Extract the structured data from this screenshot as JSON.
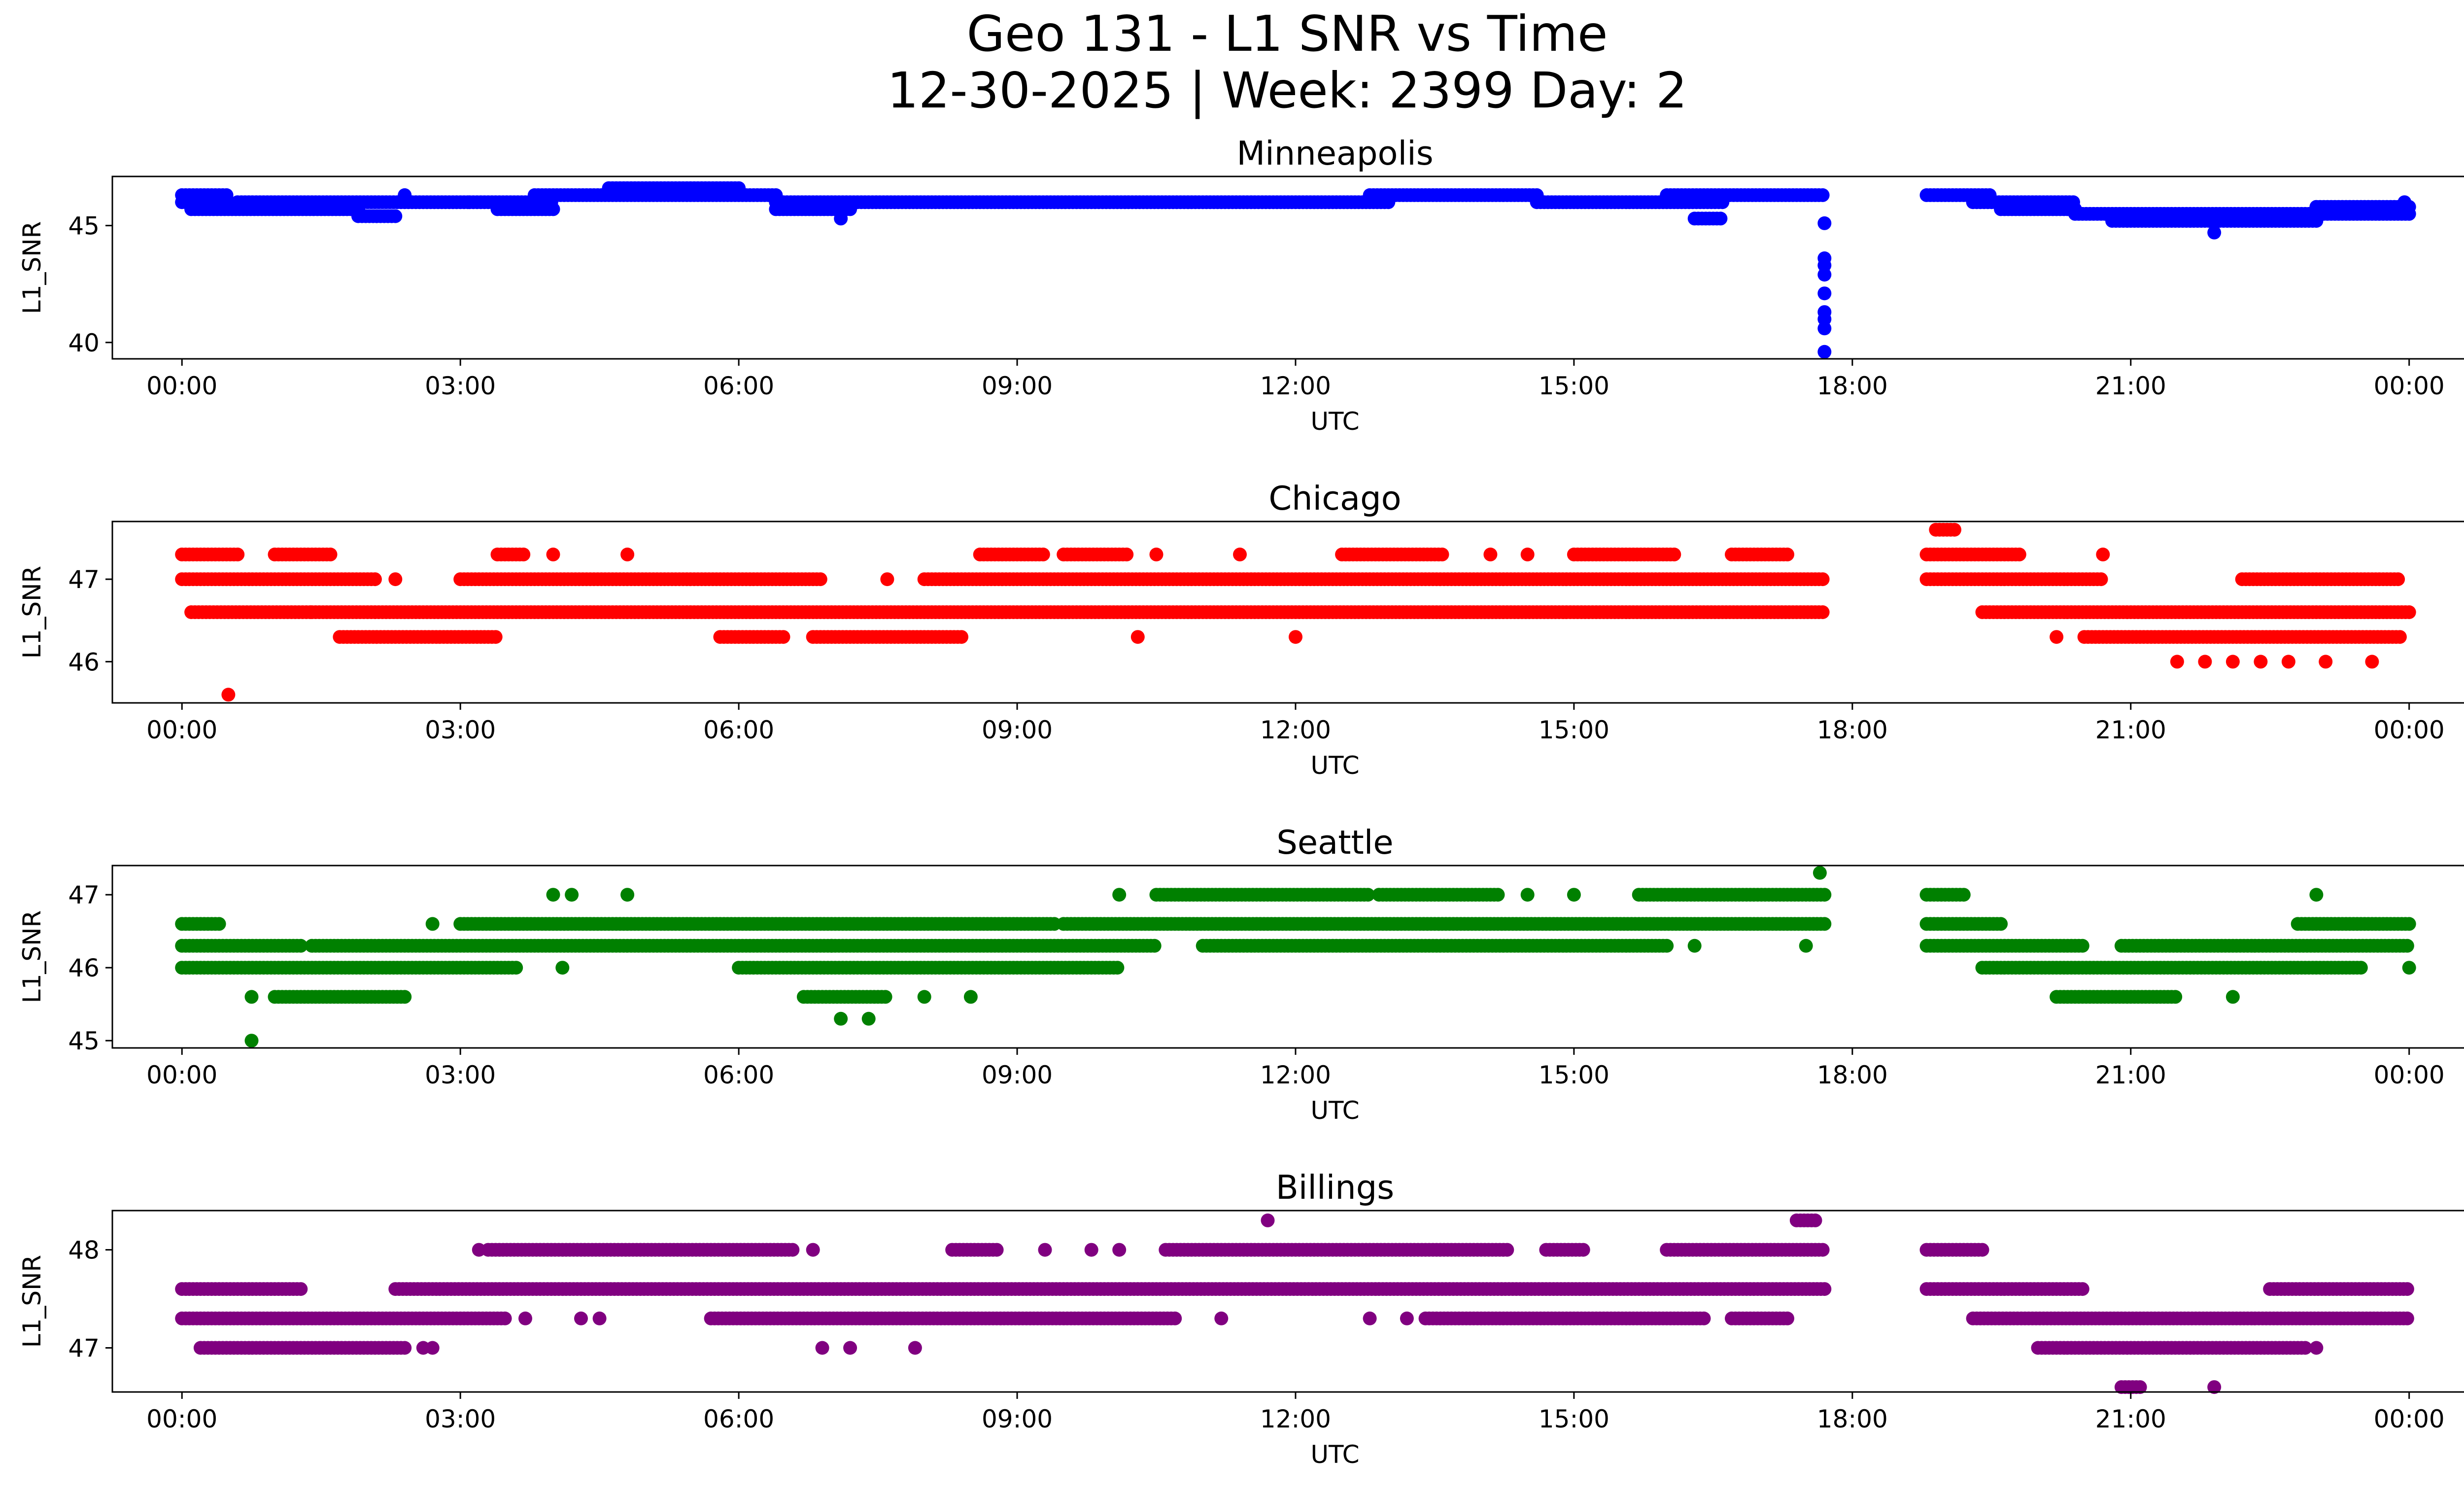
{
  "figure": {
    "title_line1": "Geo 131 - L1 SNR vs Time",
    "title_line2": "12-30-2025 | Week: 2399 Day: 2"
  },
  "chart_data": [
    {
      "type": "scatter",
      "title": "Minneapolis",
      "xlabel": "UTC",
      "ylabel": "L1_SNR",
      "color": "#0000ff",
      "x_unit": "hours since 00:00 UTC",
      "xlim": [
        -0.75,
        25.6
      ],
      "ylim": [
        39.3,
        47.1
      ],
      "x_ticks": [
        0,
        3,
        6,
        9,
        12,
        15,
        18,
        21,
        24
      ],
      "x_tick_labels": [
        "00:00",
        "03:00",
        "06:00",
        "09:00",
        "12:00",
        "15:00",
        "18:00",
        "21:00",
        "00:00"
      ],
      "y_ticks": [
        40,
        45
      ],
      "y_tick_labels": [
        "40",
        "45"
      ],
      "runs": [
        {
          "x0": 0.0,
          "x1": 0.5,
          "y": 46.3
        },
        {
          "x0": 0.0,
          "x1": 0.5,
          "y": 46.0
        },
        {
          "x0": 0.1,
          "x1": 1.9,
          "y": 45.7
        },
        {
          "x0": 0.6,
          "x1": 3.1,
          "y": 46.0
        },
        {
          "x0": 1.9,
          "x1": 2.3,
          "y": 45.4
        },
        {
          "x0": 3.1,
          "x1": 4.0,
          "y": 46.0
        },
        {
          "x0": 3.4,
          "x1": 4.0,
          "y": 45.7
        },
        {
          "x0": 3.8,
          "x1": 6.4,
          "y": 46.3
        },
        {
          "x0": 4.6,
          "x1": 6.0,
          "y": 46.6
        },
        {
          "x0": 6.4,
          "x1": 13.0,
          "y": 46.0
        },
        {
          "x0": 6.4,
          "x1": 7.2,
          "y": 45.7
        },
        {
          "x0": 12.8,
          "x1": 14.6,
          "y": 46.3
        },
        {
          "x0": 14.6,
          "x1": 16.6,
          "y": 46.0
        },
        {
          "x0": 16.0,
          "x1": 17.7,
          "y": 46.3
        },
        {
          "x0": 16.3,
          "x1": 16.6,
          "y": 45.3
        },
        {
          "x0": 18.8,
          "x1": 19.5,
          "y": 46.3
        },
        {
          "x0": 19.3,
          "x1": 20.4,
          "y": 46.0
        },
        {
          "x0": 19.6,
          "x1": 20.4,
          "y": 45.7
        },
        {
          "x0": 20.4,
          "x1": 24.0,
          "y": 45.5
        },
        {
          "x0": 20.8,
          "x1": 23.0,
          "y": 45.2
        },
        {
          "x0": 23.0,
          "x1": 24.0,
          "y": 45.8
        }
      ],
      "points": [
        {
          "x": 2.4,
          "y": 46.3
        },
        {
          "x": 7.1,
          "y": 45.3
        },
        {
          "x": 17.7,
          "y": 45.1
        },
        {
          "x": 17.7,
          "y": 43.6
        },
        {
          "x": 17.7,
          "y": 43.3
        },
        {
          "x": 17.7,
          "y": 42.9
        },
        {
          "x": 17.7,
          "y": 42.1
        },
        {
          "x": 17.7,
          "y": 41.3
        },
        {
          "x": 17.7,
          "y": 41.0
        },
        {
          "x": 17.7,
          "y": 40.6
        },
        {
          "x": 17.7,
          "y": 39.6
        },
        {
          "x": 21.9,
          "y": 44.7
        },
        {
          "x": 23.95,
          "y": 46.0
        }
      ]
    },
    {
      "type": "scatter",
      "title": "Chicago",
      "xlabel": "UTC",
      "ylabel": "L1_SNR",
      "color": "#ff0000",
      "x_unit": "hours since 00:00 UTC",
      "xlim": [
        -0.75,
        25.6
      ],
      "ylim": [
        45.5,
        47.7
      ],
      "x_ticks": [
        0,
        3,
        6,
        9,
        12,
        15,
        18,
        21,
        24
      ],
      "x_tick_labels": [
        "00:00",
        "03:00",
        "06:00",
        "09:00",
        "12:00",
        "15:00",
        "18:00",
        "21:00",
        "00:00"
      ],
      "y_ticks": [
        46,
        47
      ],
      "y_tick_labels": [
        "46",
        "47"
      ],
      "runs": [
        {
          "x0": 0.0,
          "x1": 0.6,
          "y": 47.3
        },
        {
          "x0": 0.0,
          "x1": 2.1,
          "y": 47.0
        },
        {
          "x0": 0.1,
          "x1": 1.4,
          "y": 46.6
        },
        {
          "x0": 1.0,
          "x1": 1.6,
          "y": 47.3
        },
        {
          "x0": 1.4,
          "x1": 17.7,
          "y": 46.6
        },
        {
          "x0": 1.7,
          "x1": 3.4,
          "y": 46.3
        },
        {
          "x0": 3.0,
          "x1": 6.9,
          "y": 47.0
        },
        {
          "x0": 3.4,
          "x1": 3.7,
          "y": 47.3
        },
        {
          "x0": 5.8,
          "x1": 6.5,
          "y": 46.3
        },
        {
          "x0": 6.8,
          "x1": 8.4,
          "y": 46.3
        },
        {
          "x0": 8.0,
          "x1": 17.7,
          "y": 47.0
        },
        {
          "x0": 8.6,
          "x1": 9.3,
          "y": 47.3
        },
        {
          "x0": 9.5,
          "x1": 10.2,
          "y": 47.3
        },
        {
          "x0": 12.5,
          "x1": 13.6,
          "y": 47.3
        },
        {
          "x0": 15.0,
          "x1": 16.1,
          "y": 47.3
        },
        {
          "x0": 16.7,
          "x1": 17.3,
          "y": 47.3
        },
        {
          "x0": 18.8,
          "x1": 19.8,
          "y": 47.3
        },
        {
          "x0": 18.8,
          "x1": 20.7,
          "y": 47.0
        },
        {
          "x0": 19.4,
          "x1": 24.0,
          "y": 46.6
        },
        {
          "x0": 20.5,
          "x1": 23.9,
          "y": 46.3
        },
        {
          "x0": 22.2,
          "x1": 23.9,
          "y": 47.0
        },
        {
          "x0": 18.9,
          "x1": 19.1,
          "y": 47.6
        }
      ],
      "points": [
        {
          "x": 0.5,
          "y": 45.6
        },
        {
          "x": 2.3,
          "y": 47.0
        },
        {
          "x": 4.0,
          "y": 47.3
        },
        {
          "x": 4.8,
          "y": 47.3
        },
        {
          "x": 7.6,
          "y": 47.0
        },
        {
          "x": 10.5,
          "y": 47.3
        },
        {
          "x": 11.4,
          "y": 47.3
        },
        {
          "x": 10.3,
          "y": 46.3
        },
        {
          "x": 12.0,
          "y": 46.3
        },
        {
          "x": 14.1,
          "y": 47.3
        },
        {
          "x": 14.5,
          "y": 47.3
        },
        {
          "x": 20.2,
          "y": 46.3
        },
        {
          "x": 20.7,
          "y": 47.3
        },
        {
          "x": 21.5,
          "y": 46.0
        },
        {
          "x": 21.8,
          "y": 46.0
        },
        {
          "x": 22.1,
          "y": 46.0
        },
        {
          "x": 22.4,
          "y": 46.0
        },
        {
          "x": 22.7,
          "y": 46.0
        },
        {
          "x": 23.1,
          "y": 46.0
        },
        {
          "x": 23.6,
          "y": 46.0
        }
      ]
    },
    {
      "type": "scatter",
      "title": "Seattle",
      "xlabel": "UTC",
      "ylabel": "L1_SNR",
      "color": "#008000",
      "x_unit": "hours since 00:00 UTC",
      "xlim": [
        -0.75,
        25.6
      ],
      "ylim": [
        44.9,
        47.4
      ],
      "x_ticks": [
        0,
        3,
        6,
        9,
        12,
        15,
        18,
        21,
        24
      ],
      "x_tick_labels": [
        "00:00",
        "03:00",
        "06:00",
        "09:00",
        "12:00",
        "15:00",
        "18:00",
        "21:00",
        "00:00"
      ],
      "y_ticks": [
        45,
        46,
        47
      ],
      "y_tick_labels": [
        "45",
        "46",
        "47"
      ],
      "runs": [
        {
          "x0": 0.0,
          "x1": 0.4,
          "y": 46.6
        },
        {
          "x0": 0.0,
          "x1": 1.3,
          "y": 46.3
        },
        {
          "x0": 0.0,
          "x1": 3.6,
          "y": 46.0
        },
        {
          "x0": 1.0,
          "x1": 2.4,
          "y": 45.6
        },
        {
          "x0": 1.4,
          "x1": 7.0,
          "y": 46.3
        },
        {
          "x0": 3.0,
          "x1": 9.4,
          "y": 46.6
        },
        {
          "x0": 6.0,
          "x1": 10.1,
          "y": 46.0
        },
        {
          "x0": 6.7,
          "x1": 7.6,
          "y": 45.6
        },
        {
          "x0": 7.0,
          "x1": 10.5,
          "y": 46.3
        },
        {
          "x0": 9.5,
          "x1": 17.7,
          "y": 46.6
        },
        {
          "x0": 10.5,
          "x1": 12.8,
          "y": 47.0
        },
        {
          "x0": 11.0,
          "x1": 16.0,
          "y": 46.3
        },
        {
          "x0": 12.9,
          "x1": 14.2,
          "y": 47.0
        },
        {
          "x0": 15.7,
          "x1": 17.7,
          "y": 47.0
        },
        {
          "x0": 18.8,
          "x1": 19.6,
          "y": 46.6
        },
        {
          "x0": 18.8,
          "x1": 20.5,
          "y": 46.3
        },
        {
          "x0": 19.4,
          "x1": 23.5,
          "y": 46.0
        },
        {
          "x0": 20.2,
          "x1": 21.5,
          "y": 45.6
        },
        {
          "x0": 20.9,
          "x1": 24.0,
          "y": 46.3
        },
        {
          "x0": 22.8,
          "x1": 24.0,
          "y": 46.6
        },
        {
          "x0": 18.8,
          "x1": 19.2,
          "y": 47.0
        }
      ],
      "points": [
        {
          "x": 0.75,
          "y": 45.6
        },
        {
          "x": 0.75,
          "y": 45.0
        },
        {
          "x": 2.7,
          "y": 46.6
        },
        {
          "x": 4.0,
          "y": 47.0
        },
        {
          "x": 4.2,
          "y": 47.0
        },
        {
          "x": 4.8,
          "y": 47.0
        },
        {
          "x": 4.1,
          "y": 46.0
        },
        {
          "x": 7.1,
          "y": 45.3
        },
        {
          "x": 7.4,
          "y": 45.3
        },
        {
          "x": 8.0,
          "y": 45.6
        },
        {
          "x": 8.5,
          "y": 45.6
        },
        {
          "x": 10.1,
          "y": 47.0
        },
        {
          "x": 14.5,
          "y": 47.0
        },
        {
          "x": 15.0,
          "y": 47.0
        },
        {
          "x": 16.3,
          "y": 46.3
        },
        {
          "x": 17.5,
          "y": 46.3
        },
        {
          "x": 17.65,
          "y": 47.3
        },
        {
          "x": 22.1,
          "y": 45.6
        },
        {
          "x": 23.0,
          "y": 47.0
        },
        {
          "x": 24.0,
          "y": 46.0
        }
      ]
    },
    {
      "type": "scatter",
      "title": "Billings",
      "xlabel": "UTC",
      "ylabel": "L1_SNR",
      "color": "#800080",
      "x_unit": "hours since 00:00 UTC",
      "xlim": [
        -0.75,
        25.6
      ],
      "ylim": [
        46.55,
        48.4
      ],
      "x_ticks": [
        0,
        3,
        6,
        9,
        12,
        15,
        18,
        21,
        24
      ],
      "x_tick_labels": [
        "00:00",
        "03:00",
        "06:00",
        "09:00",
        "12:00",
        "15:00",
        "18:00",
        "21:00",
        "00:00"
      ],
      "y_ticks": [
        47,
        48
      ],
      "y_tick_labels": [
        "47",
        "48"
      ],
      "runs": [
        {
          "x0": 0.0,
          "x1": 1.3,
          "y": 47.6
        },
        {
          "x0": 0.0,
          "x1": 3.5,
          "y": 47.3
        },
        {
          "x0": 0.2,
          "x1": 2.4,
          "y": 47.0
        },
        {
          "x0": 2.3,
          "x1": 17.7,
          "y": 47.6
        },
        {
          "x0": 3.3,
          "x1": 6.6,
          "y": 48.0
        },
        {
          "x0": 5.7,
          "x1": 10.7,
          "y": 47.3
        },
        {
          "x0": 8.3,
          "x1": 8.8,
          "y": 48.0
        },
        {
          "x0": 10.6,
          "x1": 14.3,
          "y": 48.0
        },
        {
          "x0": 13.4,
          "x1": 16.4,
          "y": 47.3
        },
        {
          "x0": 14.7,
          "x1": 15.1,
          "y": 48.0
        },
        {
          "x0": 16.0,
          "x1": 17.7,
          "y": 48.0
        },
        {
          "x0": 16.7,
          "x1": 17.3,
          "y": 47.3
        },
        {
          "x0": 18.8,
          "x1": 19.4,
          "y": 48.0
        },
        {
          "x0": 18.8,
          "x1": 20.5,
          "y": 47.6
        },
        {
          "x0": 19.3,
          "x1": 24.0,
          "y": 47.3
        },
        {
          "x0": 20.0,
          "x1": 22.9,
          "y": 47.0
        },
        {
          "x0": 22.5,
          "x1": 24.0,
          "y": 47.6
        },
        {
          "x0": 20.9,
          "x1": 21.1,
          "y": 46.6
        },
        {
          "x0": 17.4,
          "x1": 17.6,
          "y": 48.3
        }
      ],
      "points": [
        {
          "x": 2.6,
          "y": 47.0
        },
        {
          "x": 2.7,
          "y": 47.0
        },
        {
          "x": 3.2,
          "y": 48.0
        },
        {
          "x": 3.7,
          "y": 47.3
        },
        {
          "x": 4.3,
          "y": 47.3
        },
        {
          "x": 4.5,
          "y": 47.3
        },
        {
          "x": 6.8,
          "y": 48.0
        },
        {
          "x": 6.9,
          "y": 47.0
        },
        {
          "x": 7.2,
          "y": 47.0
        },
        {
          "x": 7.9,
          "y": 47.0
        },
        {
          "x": 9.3,
          "y": 48.0
        },
        {
          "x": 9.8,
          "y": 48.0
        },
        {
          "x": 10.1,
          "y": 48.0
        },
        {
          "x": 11.2,
          "y": 47.3
        },
        {
          "x": 11.7,
          "y": 48.3
        },
        {
          "x": 12.8,
          "y": 47.3
        },
        {
          "x": 13.2,
          "y": 47.3
        },
        {
          "x": 21.9,
          "y": 46.6
        },
        {
          "x": 23.0,
          "y": 47.0
        }
      ]
    }
  ]
}
